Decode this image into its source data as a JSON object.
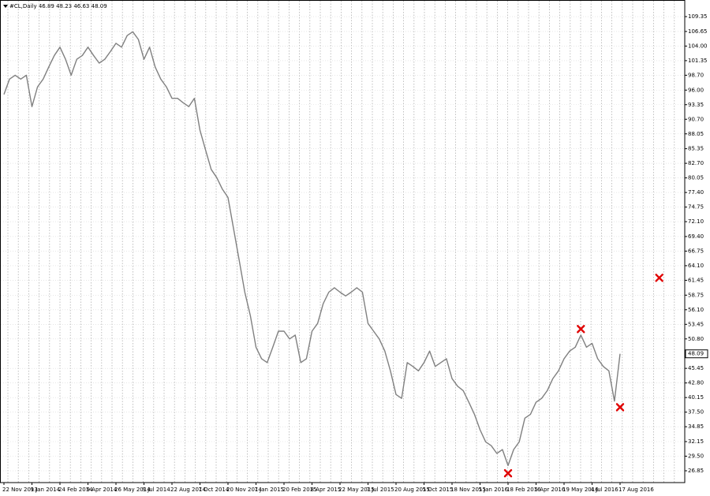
{
  "chart_data": {
    "type": "line",
    "title": "#CL,Daily  46.89 48.23 46.63 48.09",
    "categories": [
      "22 Nov 2013",
      null,
      null,
      null,
      null,
      "9 Jan 2014",
      null,
      null,
      null,
      null,
      "24 Feb 2014",
      null,
      null,
      null,
      null,
      "9 Apr 2014",
      null,
      null,
      null,
      null,
      "26 May 2014",
      null,
      null,
      null,
      null,
      "9 Jul 2014",
      null,
      null,
      null,
      null,
      "22 Aug 2014",
      null,
      null,
      null,
      null,
      "7 Oct 2014",
      null,
      null,
      null,
      null,
      "20 Nov 2014",
      null,
      null,
      null,
      null,
      "7 Jan 2015",
      null,
      null,
      null,
      null,
      "20 Feb 2015",
      null,
      null,
      null,
      null,
      "8 Apr 2015",
      null,
      null,
      null,
      null,
      "22 May 2015",
      null,
      null,
      null,
      null,
      "7 Jul 2015",
      null,
      null,
      null,
      null,
      "20 Aug 2015",
      null,
      null,
      null,
      null,
      "5 Oct 2015",
      null,
      null,
      null,
      null,
      "18 Nov 2015",
      null,
      null,
      null,
      null,
      "5 Jan 2016",
      null,
      null,
      null,
      null,
      "18 Feb 2016",
      null,
      null,
      null,
      null,
      "5 Apr 2016",
      null,
      null,
      null,
      null,
      "19 May 2016",
      null,
      null,
      null,
      null,
      "4 Jul 2016",
      null,
      null,
      null,
      null,
      "17 Aug 2016",
      null,
      null,
      null,
      null,
      null,
      null,
      null,
      null,
      null,
      null,
      null
    ],
    "series": [
      {
        "color": "#808080",
        "values": [
          95.2,
          98,
          98.7,
          98,
          98.7,
          93,
          96.6,
          98,
          100.2,
          102.3,
          103.8,
          101.6,
          98.7,
          101.6,
          102.3,
          103.8,
          102.3,
          100.9,
          101.6,
          103,
          104.5,
          103.8,
          105.9,
          106.6,
          105.2,
          101.6,
          103.8,
          100.2,
          98,
          96.6,
          94.5,
          94.5,
          93.7,
          93,
          94.5,
          88.7,
          85.1,
          81.6,
          80.1,
          78,
          76.5,
          70.8,
          65.1,
          59.3,
          55,
          49.3,
          47.2,
          46.5,
          49.3,
          52.2,
          52.2,
          50.8,
          51.5,
          46.5,
          47.2,
          52.2,
          53.6,
          57.2,
          59.3,
          60.1,
          59.3,
          58.6,
          59.3,
          60.1,
          59.3,
          53.6,
          52.2,
          50.8,
          48.6,
          45,
          40.7,
          40,
          46.5,
          45.8,
          45,
          46.5,
          48.6,
          45.8,
          46.5,
          47.2,
          43.6,
          42.2,
          41.4,
          39.3,
          37.1,
          34.3,
          32.1,
          31.4,
          30,
          30.7,
          27.8,
          30.7,
          32.1,
          36.4,
          37.1,
          39.3,
          40,
          41.4,
          43.6,
          45,
          47.2,
          48.6,
          49.3,
          51.5,
          49.3,
          50,
          47.2,
          45.8,
          45,
          39.5,
          48.09,
          null,
          null,
          null,
          null,
          null,
          null,
          null,
          null,
          null,
          null,
          null
        ]
      },
      {
        "color": "#e00000",
        "values": [
          null,
          null,
          null,
          null,
          null,
          null,
          null,
          null,
          null,
          null,
          null,
          null,
          null,
          null,
          null,
          null,
          null,
          null,
          null,
          null,
          null,
          null,
          null,
          null,
          null,
          null,
          null,
          null,
          null,
          null,
          null,
          null,
          null,
          null,
          null,
          null,
          null,
          null,
          null,
          null,
          null,
          null,
          null,
          null,
          null,
          null,
          null,
          null,
          null,
          null,
          null,
          null,
          null,
          null,
          null,
          null,
          null,
          null,
          null,
          null,
          null,
          null,
          null,
          null,
          null,
          null,
          null,
          null,
          null,
          null,
          null,
          null,
          null,
          null,
          null,
          null,
          null,
          null,
          null,
          null,
          null,
          null,
          null,
          null,
          null,
          null,
          null,
          null,
          null,
          null,
          26.4,
          null,
          null,
          null,
          null,
          null,
          null,
          null,
          null,
          null,
          null,
          null,
          null,
          52.6,
          null,
          null,
          null,
          null,
          null,
          null,
          38.4,
          null,
          null,
          null,
          null,
          null,
          null,
          61.9,
          null,
          null,
          null,
          null
        ]
      }
    ],
    "ylim": [
      24.7,
      111.65
    ],
    "yticks": [
      109.35,
      106.65,
      {
        "value": 104,
        "label": "104.00"
      },
      101.35,
      {
        "value": 98.7,
        "label": "98.70"
      },
      {
        "value": 96,
        "label": "96.00"
      },
      93.35,
      {
        "value": 90.7,
        "label": "90.70"
      },
      88.05,
      85.35,
      {
        "value": 82.7,
        "label": "82.70"
      },
      80.05,
      {
        "value": 77.4,
        "label": "77.40"
      },
      74.75,
      {
        "value": 72.1,
        "label": "72.10"
      },
      {
        "value": 69.4,
        "label": "69.40"
      },
      66.75,
      {
        "value": 64.1,
        "label": "64.10"
      },
      61.45,
      58.75,
      {
        "value": 56.1,
        "label": "56.10"
      },
      53.45,
      {
        "value": 50.8,
        "label": "50.80"
      },
      45.45,
      {
        "value": 42.8,
        "label": "42.80"
      },
      40.15,
      {
        "value": 37.5,
        "label": "37.50"
      },
      34.85,
      32.15,
      {
        "value": 29.5,
        "label": "29.50"
      },
      26.85
    ],
    "grid": true
  }
}
